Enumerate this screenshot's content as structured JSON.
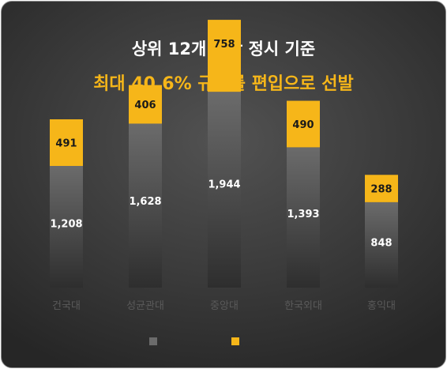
{
  "header": {
    "line1": "상위 12개 대학 정시 기준",
    "line2": "최대 40.6% 규모를 편입으로 선발"
  },
  "colors": {
    "base_top": "#6b6b6b",
    "base_bottom": "#2e2e2e",
    "transfer": "#f6b619",
    "label_light": "#ffffff",
    "label_dark": "#1a1a1a"
  },
  "chart_data": {
    "type": "bar",
    "stacked": true,
    "categories": [
      "건국대",
      "성균관대",
      "중앙대",
      "한국외대",
      "홍익대"
    ],
    "series": [
      {
        "values": [
          1208,
          1628,
          1944,
          1393,
          848
        ],
        "labels": [
          "1,208",
          "1,628",
          "1,944",
          "1,393",
          "848"
        ]
      },
      {
        "values": [
          491,
          406,
          758,
          490,
          288
        ],
        "labels": [
          "491",
          "406",
          "758",
          "490",
          "288"
        ]
      }
    ],
    "legend": "bottom"
  }
}
